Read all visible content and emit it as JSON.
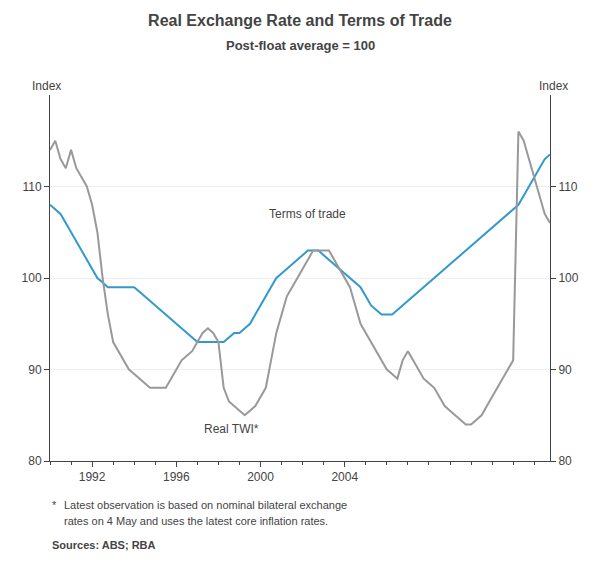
{
  "chart_data": {
    "type": "line",
    "title": "Real Exchange Rate and Terms of Trade",
    "subtitle": "Post-float average = 100",
    "ylabel": "Index",
    "y2label": "Index",
    "x": [
      1990,
      1990.25,
      1990.5,
      1990.75,
      1991,
      1991.25,
      1991.5,
      1991.75,
      1992,
      1992.25,
      1992.5,
      1992.75,
      1993,
      1993.25,
      1993.5,
      1993.75,
      1994,
      1994.25,
      1994.5,
      1994.75,
      1995,
      1995.25,
      1995.5,
      1995.75,
      1996,
      1996.25,
      1996.5,
      1996.75,
      1997,
      1997.25,
      1997.5,
      1997.75,
      1998,
      1998.25,
      1998.5,
      1998.75,
      1999,
      1999.25,
      1999.5,
      1999.75,
      2000,
      2000.25,
      2000.5,
      2000.75,
      2001,
      2001.25,
      2001.5,
      2001.75,
      2002,
      2002.25,
      2002.5,
      2002.75,
      2003,
      2003.25,
      2003.5,
      2003.75,
      2004,
      2004.25,
      2004.5,
      2004.75,
      2005,
      2005.25,
      2005.5,
      2005.75,
      2006,
      2006.25,
      2006.5,
      2006.75,
      2007,
      2007.25,
      2007.5,
      2007.75,
      2008,
      2008.25,
      2008.5,
      2008.75,
      2009,
      2009.25,
      2009.5,
      2009.75,
      2010,
      2010.25,
      2010.5,
      2010.75,
      2011,
      2011.25,
      2011.5,
      2011.75,
      2012,
      2012.25,
      2012.5,
      2012.75,
      2013,
      2013.25,
      2013.5,
      2013.75
    ],
    "series": [
      {
        "color": "#3399cc",
        "values": [
          108,
          107.5,
          107,
          106,
          105,
          104,
          103,
          102,
          101,
          100,
          99.5,
          99,
          99,
          99,
          99,
          99,
          99,
          98.5,
          98,
          97.5,
          97,
          96.5,
          96,
          95.5,
          95,
          94.5,
          94,
          93.5,
          93,
          93,
          93,
          93,
          93,
          93,
          93.5,
          94,
          94,
          94.5,
          95,
          96,
          97,
          98,
          99,
          100,
          100.5,
          101,
          101.5,
          102,
          102.5,
          103,
          103,
          103,
          102.5,
          102,
          101.5,
          101,
          100.5,
          100,
          99.5,
          99,
          98,
          97,
          96.5,
          96,
          96,
          96,
          96.5,
          97,
          97.5,
          98,
          98.5,
          99,
          99.5,
          100,
          100.5,
          101,
          101.5,
          102,
          102.5,
          103,
          103.5,
          104,
          104.5,
          105,
          105.5,
          106,
          106.5,
          107,
          107.5,
          108,
          109,
          110,
          111,
          112,
          113,
          113.5
        ]
      },
      {
        "color": "#999999",
        "values": [
          114,
          115,
          113,
          112,
          114,
          112,
          111,
          110,
          108,
          105,
          100,
          96,
          93,
          92,
          91,
          90,
          89.5,
          89,
          88.5,
          88,
          88,
          88,
          88,
          89,
          90,
          91,
          91.5,
          92,
          93,
          94,
          94.5,
          94,
          93,
          88,
          86.5,
          86,
          85.5,
          85,
          85.5,
          86,
          87,
          88,
          91,
          94,
          96,
          98,
          99,
          100,
          101,
          102,
          103,
          103,
          103,
          103,
          102,
          101,
          100,
          99,
          97,
          95,
          94,
          93,
          92,
          91,
          90,
          89.5,
          89,
          91,
          92,
          91,
          90,
          89,
          88.5,
          88,
          87,
          86,
          85.5,
          85,
          84.5,
          84,
          84,
          84.5,
          85,
          86,
          87,
          88,
          89,
          90,
          91,
          116,
          115,
          113,
          111,
          109,
          107,
          106
        ]
      }
    ],
    "annotations": [
      {
        "text": "Terms of trade",
        "x": 2000.3,
        "y": 107
      },
      {
        "text": "Real TWI*",
        "x": 1997.2,
        "y": 83.5
      }
    ],
    "footnote_marker": "*",
    "footnote": [
      "Latest observation is based on nominal bilateral exchange",
      "rates on 4 May and uses the latest core inflation rates."
    ],
    "source": "Sources: ABS; RBA",
    "xlim": [
      1990,
      2013.75
    ],
    "xticks": [
      1992,
      1996,
      2000,
      2004
    ],
    "ylim": [
      80,
      120
    ],
    "yticks": [
      80,
      90,
      100,
      110
    ],
    "y2lim": [
      80,
      120
    ],
    "y2ticks": [
      80,
      90,
      100,
      110
    ],
    "grid": true
  }
}
